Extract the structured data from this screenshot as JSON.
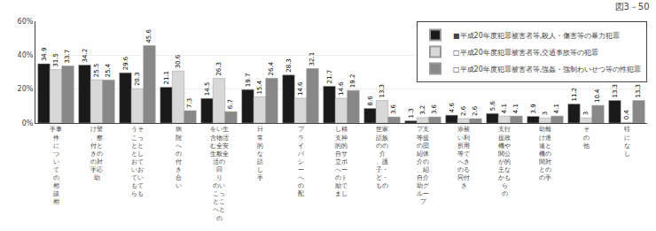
{
  "chart_data": {
    "type": "bar",
    "title": "図3－50",
    "categories": [
      "手事\n件\nに\nつ\nい\nて\nの\n相\n談\n相",
      "け警\n、察\n付と\nきの\nの対\n手応\n助",
      "うそ\nこっ\nとと\nとし\nおて\nいお\nてい\nもて\nらも",
      "病\n院\nへ\nの\n付\nき\n合\nい",
      "をい生\n含物活\nむ全安\n生般全\n活の\n回\nり\nのい\nこっ\nとこ\nへと\nの",
      "日\n常\n的\nな\n話\nし\n手",
      "プ\nラ\nイ\nバ\nシ\nー\nへ\nの\n配",
      "し精\n支神\n的的\n自サ\n立ポ\nへー\nのト\n励で\nまし",
      "世家\n話族\nのの\n介\n、護\n子・\nど・\nもの",
      "プ支\n等援\nの団\n紹体\n介の\n、紹\n自介\n助グ\nルー\nプ",
      "添被\nい利\n所用\n等で\nへき\nのる\n同付\nき",
      "支行\n援政\n機や\n関公\nが的\n主な\nかも\nら\nの",
      "助報\nけ道\n連と\n機の\n関対\nとの\nの手",
      "そ\nの\n他",
      "特\nに\nな\nし"
    ],
    "series": [
      {
        "name": "■平成20年度犯罪被害者等,殺人・傷害等の暴力犯罪",
        "color": "#1a1a1a",
        "values": [
          34.9,
          34.2,
          29.6,
          21.1,
          14.5,
          19.7,
          28.3,
          21.7,
          8.6,
          1.3,
          4.6,
          5.6,
          3.9,
          11.2,
          13.3
        ]
      },
      {
        "name": "□平成20年度犯罪被害者等,交通事故等の犯罪",
        "color": "#d8d8d8",
        "values": [
          31.5,
          25.5,
          20.3,
          30.6,
          26.3,
          15.4,
          14.6,
          14.6,
          13.3,
          3.2,
          2.6,
          4.1,
          3.0,
          3.0,
          0.4
        ]
      },
      {
        "name": "□平成20年度犯罪被害者等,強姦・強制わいせつ等の性犯罪",
        "color": "#888888",
        "values": [
          33.7,
          25.4,
          45.6,
          7.3,
          6.7,
          26.4,
          32.1,
          19.2,
          3.6,
          3.6,
          2.6,
          4.1,
          4.1,
          10.4,
          13.3
        ]
      }
    ],
    "ylim": [
      0,
      60
    ],
    "yticks": [
      {
        "value": 0,
        "label": "0%"
      },
      {
        "value": 20,
        "label": "20%"
      },
      {
        "value": 40,
        "label": "40%"
      },
      {
        "value": 60,
        "label": "60%"
      }
    ],
    "grid": true,
    "legend": "upper right",
    "data_labels": true
  }
}
